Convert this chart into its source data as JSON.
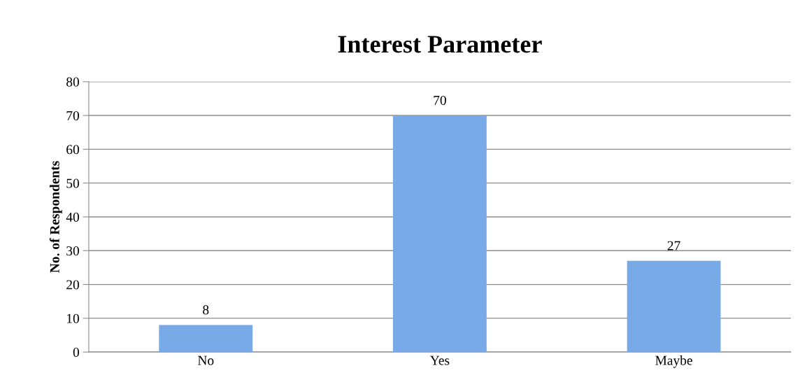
{
  "chart_data": {
    "type": "bar",
    "title": "Interest Parameter",
    "ylabel": "No. of Respondents",
    "categories": [
      "No",
      "Yes",
      "Maybe"
    ],
    "values": [
      8,
      70,
      27
    ],
    "color": "#78aae8",
    "ylim": [
      0,
      80
    ],
    "yticks": [
      0,
      10,
      20,
      30,
      40,
      50,
      60,
      70,
      80
    ],
    "grid": "y",
    "data_labels": true,
    "legend": false
  }
}
